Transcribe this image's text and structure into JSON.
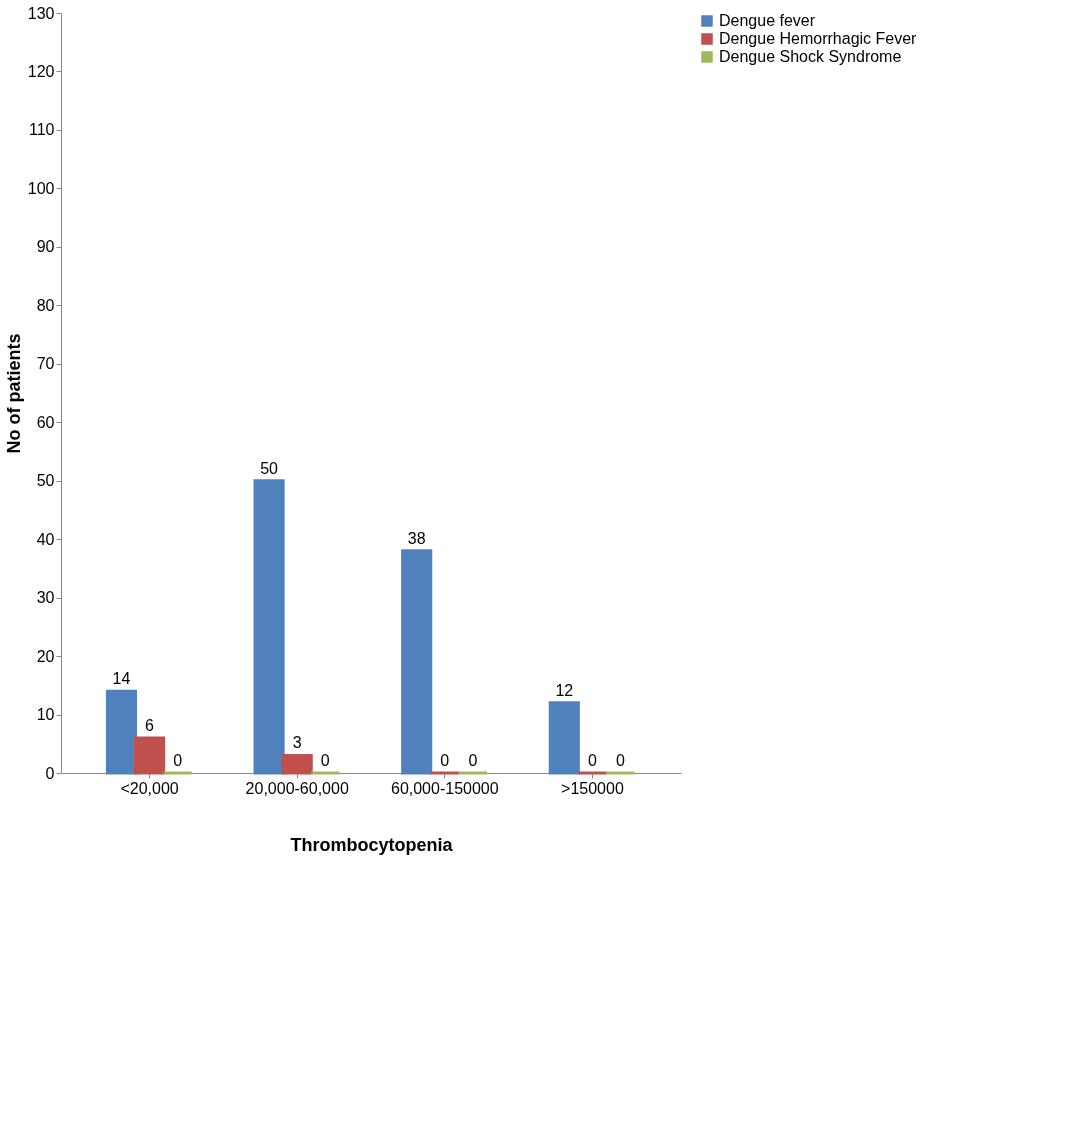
{
  "chart_data": {
    "type": "bar",
    "xlabel": "Thrombocytopenia",
    "ylabel": "No of patients",
    "categories": [
      "<20,000",
      "20,000-60,000",
      "60,000-150000",
      ">150000"
    ],
    "series": [
      {
        "name": "Dengue fever",
        "color": "#4f81bd",
        "values": [
          14,
          50,
          38,
          12
        ]
      },
      {
        "name": "Dengue Hemorrhagic Fever",
        "color": "#c0504d",
        "values": [
          6,
          3,
          0,
          0
        ]
      },
      {
        "name": "Dengue Shock Syndrome",
        "color": "#9bbb59",
        "values": [
          0,
          0,
          0,
          0
        ]
      }
    ],
    "ylim": [
      0,
      130
    ],
    "yticks": [
      0,
      10,
      20,
      30,
      40,
      50,
      60,
      70,
      80,
      90,
      100,
      110,
      120,
      130
    ],
    "data_labels": true,
    "grid": false,
    "legend": "right"
  }
}
